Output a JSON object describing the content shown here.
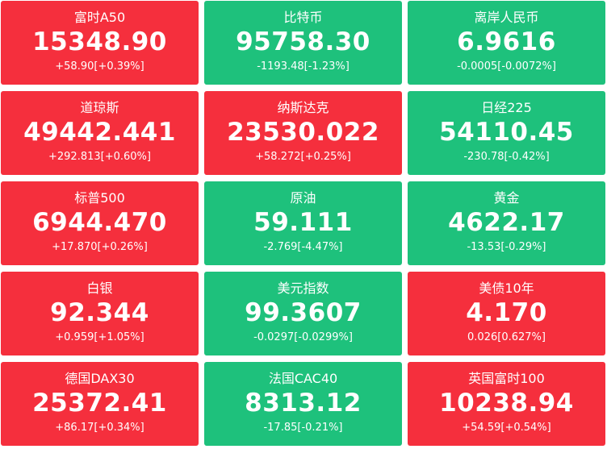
{
  "colors": {
    "up": "#f52f3d",
    "down": "#1ec17c",
    "text": "#ffffff"
  },
  "tiles": [
    {
      "name": "富时A50",
      "price": "15348.90",
      "change": "+58.90[+0.39%]",
      "trend": "up"
    },
    {
      "name": "比特币",
      "price": "95758.30",
      "change": "-1193.48[-1.23%]",
      "trend": "down"
    },
    {
      "name": "离岸人民币",
      "price": "6.9616",
      "change": "-0.0005[-0.0072%]",
      "trend": "down"
    },
    {
      "name": "道琼斯",
      "price": "49442.441",
      "change": "+292.813[+0.60%]",
      "trend": "up"
    },
    {
      "name": "纳斯达克",
      "price": "23530.022",
      "change": "+58.272[+0.25%]",
      "trend": "up"
    },
    {
      "name": "日经225",
      "price": "54110.45",
      "change": "-230.78[-0.42%]",
      "trend": "down"
    },
    {
      "name": "标普500",
      "price": "6944.470",
      "change": "+17.870[+0.26%]",
      "trend": "up"
    },
    {
      "name": "原油",
      "price": "59.111",
      "change": "-2.769[-4.47%]",
      "trend": "down"
    },
    {
      "name": "黄金",
      "price": "4622.17",
      "change": "-13.53[-0.29%]",
      "trend": "down"
    },
    {
      "name": "白银",
      "price": "92.344",
      "change": "+0.959[+1.05%]",
      "trend": "up"
    },
    {
      "name": "美元指数",
      "price": "99.3607",
      "change": "-0.0297[-0.0299%]",
      "trend": "down"
    },
    {
      "name": "美债10年",
      "price": "4.170",
      "change": "0.026[0.627%]",
      "trend": "up"
    },
    {
      "name": "德国DAX30",
      "price": "25372.41",
      "change": "+86.17[+0.34%]",
      "trend": "up"
    },
    {
      "name": "法国CAC40",
      "price": "8313.12",
      "change": "-17.85[-0.21%]",
      "trend": "down"
    },
    {
      "name": "英国富时100",
      "price": "10238.94",
      "change": "+54.59[+0.54%]",
      "trend": "up"
    }
  ]
}
